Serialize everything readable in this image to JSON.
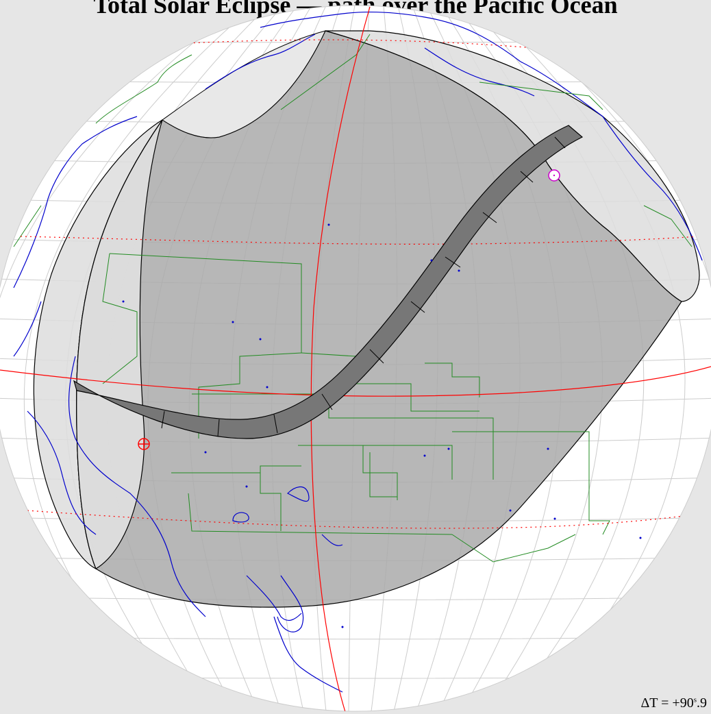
{
  "title": "Total Solar Eclipse — path over the Pacific Ocean",
  "delta_t": {
    "prefix": "ΔT = +90",
    "unit": "s",
    "suffix": ".9"
  },
  "colors": {
    "background": "#e6e6e6",
    "globe": "#ffffff",
    "graticule": "#cccccc",
    "coastline": "#0000cc",
    "borders": "#228b22",
    "penumbra_region": "#aaaaaa",
    "partial_region": "#dddddd",
    "totality_path": "#777777",
    "meridian_equator": "#ff0000",
    "tropics": "#ff0000",
    "start_marker": "#ff0000",
    "end_marker": "#cc00cc"
  }
}
